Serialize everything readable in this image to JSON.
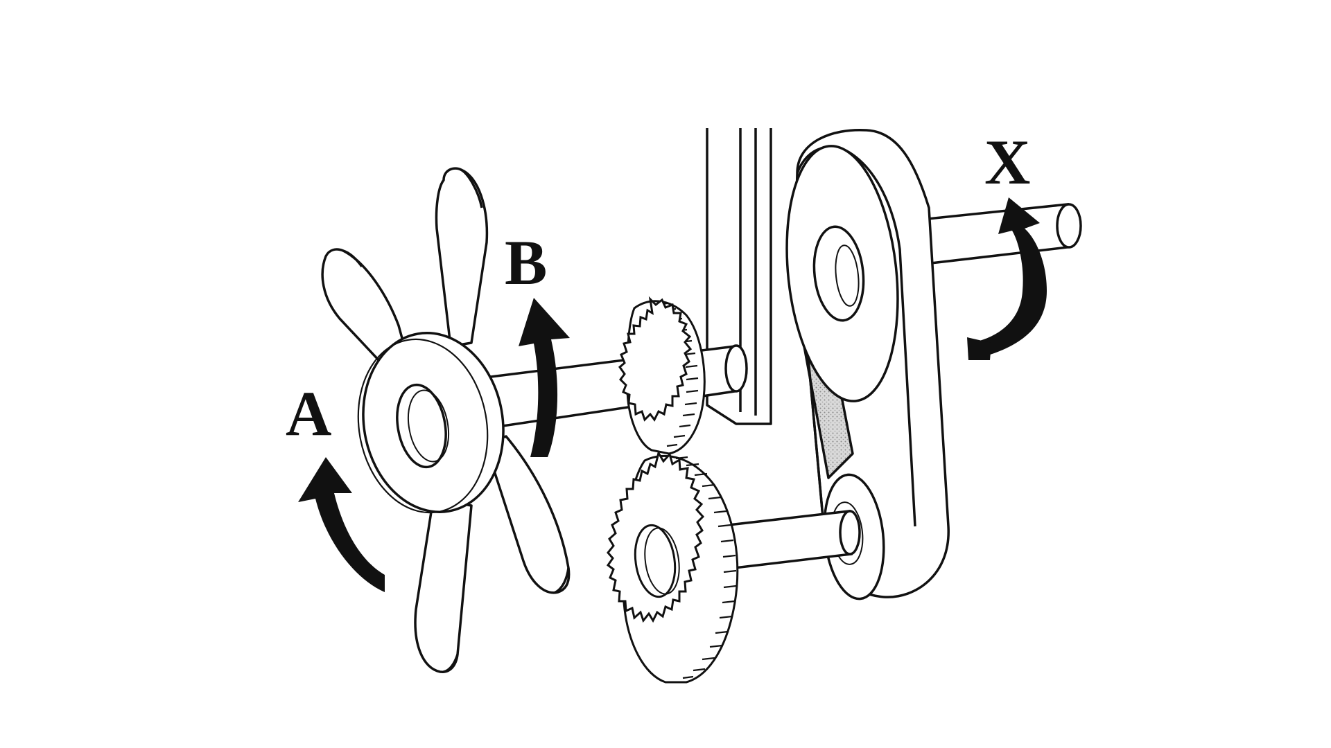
{
  "diagram": {
    "labels": {
      "a": "A",
      "b": "B",
      "x": "X"
    },
    "colors": {
      "ink": "#111111",
      "paper": "#ffffff",
      "belt_shade": "#c8c8c8"
    },
    "components": [
      "fan",
      "fan-shaft",
      "small-gear",
      "large-gear",
      "lower-shaft",
      "bracket",
      "upper-pulley",
      "lower-pulley",
      "drive-belt",
      "output-shaft"
    ]
  }
}
